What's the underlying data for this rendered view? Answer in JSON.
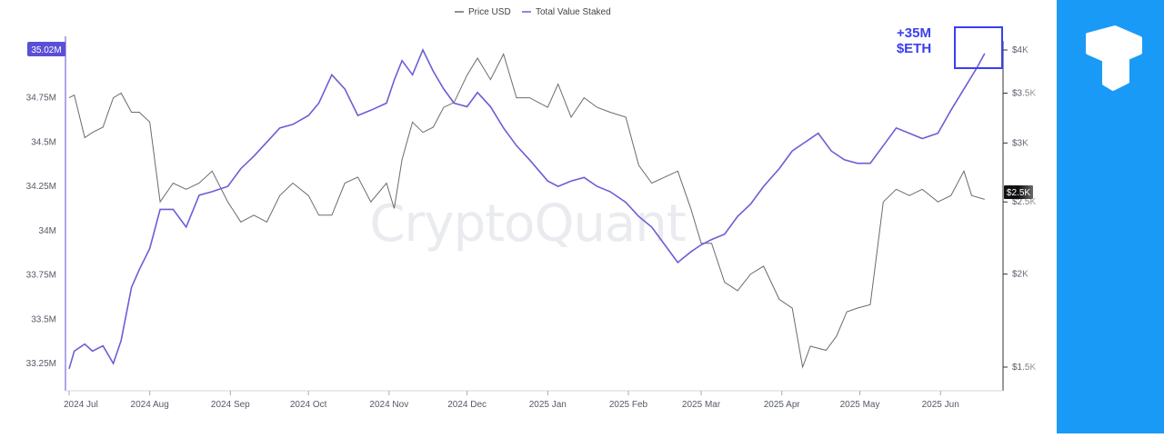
{
  "chart_data": {
    "type": "line",
    "watermark": "CryptoQuant",
    "legend": [
      {
        "name": "Price USD",
        "color": "#6b6b6b"
      },
      {
        "name": "Total Value Staked",
        "color": "#6a5ed6"
      }
    ],
    "x_ticks": [
      "2024 Jul",
      "2024 Aug",
      "2024 Sep",
      "2024 Oct",
      "2024 Nov",
      "2024 Dec",
      "2025 Jan",
      "2025 Feb",
      "2025 Mar",
      "2025 Apr",
      "2025 May",
      "2025 Jun"
    ],
    "left_axis": {
      "ticks": [
        "35.02M",
        "34.75M",
        "34.5M",
        "34.25M",
        "34M",
        "33.75M",
        "33.5M",
        "33.25M"
      ],
      "highlight_label": "35.02M",
      "highlight_color": "#5b4fd6",
      "min": 33.2,
      "max": 35.02
    },
    "right_axis": {
      "ticks": [
        "$4K",
        "$3.5K",
        "$3K",
        "$2.5K",
        "$2K",
        "$1.5K"
      ],
      "highlight_label": "$2.5K",
      "log": true,
      "min": 1500,
      "max": 4000
    },
    "annotation": {
      "line1": "+35M",
      "line2": "$ETH",
      "color": "#3a3ff0"
    },
    "series": [
      {
        "name": "Total Value Staked",
        "unit": "M ETH",
        "color": "#6a5ed6",
        "points": [
          [
            "2024-07-01",
            33.22
          ],
          [
            "2024-07-03",
            33.32
          ],
          [
            "2024-07-07",
            33.36
          ],
          [
            "2024-07-10",
            33.32
          ],
          [
            "2024-07-14",
            33.35
          ],
          [
            "2024-07-18",
            33.25
          ],
          [
            "2024-07-21",
            33.38
          ],
          [
            "2024-07-25",
            33.68
          ],
          [
            "2024-07-28",
            33.78
          ],
          [
            "2024-08-01",
            33.9
          ],
          [
            "2024-08-05",
            34.12
          ],
          [
            "2024-08-10",
            34.12
          ],
          [
            "2024-08-15",
            34.02
          ],
          [
            "2024-08-20",
            34.2
          ],
          [
            "2024-08-25",
            34.22
          ],
          [
            "2024-08-31",
            34.25
          ],
          [
            "2024-09-05",
            34.35
          ],
          [
            "2024-09-10",
            34.42
          ],
          [
            "2024-09-15",
            34.5
          ],
          [
            "2024-09-20",
            34.58
          ],
          [
            "2024-09-25",
            34.6
          ],
          [
            "2024-10-01",
            34.65
          ],
          [
            "2024-10-05",
            34.72
          ],
          [
            "2024-10-10",
            34.88
          ],
          [
            "2024-10-15",
            34.8
          ],
          [
            "2024-10-20",
            34.65
          ],
          [
            "2024-10-25",
            34.68
          ],
          [
            "2024-10-31",
            34.72
          ],
          [
            "2024-11-03",
            34.85
          ],
          [
            "2024-11-06",
            34.96
          ],
          [
            "2024-11-10",
            34.88
          ],
          [
            "2024-11-14",
            35.02
          ],
          [
            "2024-11-18",
            34.9
          ],
          [
            "2024-11-22",
            34.8
          ],
          [
            "2024-11-26",
            34.72
          ],
          [
            "2024-12-01",
            34.7
          ],
          [
            "2024-12-05",
            34.78
          ],
          [
            "2024-12-10",
            34.7
          ],
          [
            "2024-12-15",
            34.58
          ],
          [
            "2024-12-20",
            34.48
          ],
          [
            "2024-12-25",
            34.4
          ],
          [
            "2025-01-01",
            34.28
          ],
          [
            "2025-01-05",
            34.25
          ],
          [
            "2025-01-10",
            34.28
          ],
          [
            "2025-01-15",
            34.3
          ],
          [
            "2025-01-20",
            34.25
          ],
          [
            "2025-01-25",
            34.22
          ],
          [
            "2025-01-31",
            34.16
          ],
          [
            "2025-02-05",
            34.08
          ],
          [
            "2025-02-10",
            34.02
          ],
          [
            "2025-02-15",
            33.92
          ],
          [
            "2025-02-20",
            33.82
          ],
          [
            "2025-02-25",
            33.88
          ],
          [
            "2025-03-01",
            33.92
          ],
          [
            "2025-03-05",
            33.95
          ],
          [
            "2025-03-10",
            33.98
          ],
          [
            "2025-03-15",
            34.08
          ],
          [
            "2025-03-20",
            34.15
          ],
          [
            "2025-03-25",
            34.25
          ],
          [
            "2025-03-31",
            34.35
          ],
          [
            "2025-04-05",
            34.45
          ],
          [
            "2025-04-10",
            34.5
          ],
          [
            "2025-04-15",
            34.55
          ],
          [
            "2025-04-20",
            34.45
          ],
          [
            "2025-04-25",
            34.4
          ],
          [
            "2025-04-30",
            34.38
          ],
          [
            "2025-05-05",
            34.38
          ],
          [
            "2025-05-10",
            34.48
          ],
          [
            "2025-05-15",
            34.58
          ],
          [
            "2025-05-20",
            34.55
          ],
          [
            "2025-05-25",
            34.52
          ],
          [
            "2025-05-31",
            34.55
          ],
          [
            "2025-06-05",
            34.68
          ],
          [
            "2025-06-10",
            34.8
          ],
          [
            "2025-06-15",
            34.92
          ],
          [
            "2025-06-18",
            35.0
          ]
        ]
      },
      {
        "name": "Price USD",
        "unit": "USD",
        "color": "#6b6b6b",
        "points": [
          [
            "2024-07-01",
            3450
          ],
          [
            "2024-07-03",
            3480
          ],
          [
            "2024-07-07",
            3050
          ],
          [
            "2024-07-10",
            3100
          ],
          [
            "2024-07-14",
            3150
          ],
          [
            "2024-07-18",
            3450
          ],
          [
            "2024-07-21",
            3500
          ],
          [
            "2024-07-25",
            3300
          ],
          [
            "2024-07-28",
            3300
          ],
          [
            "2024-08-01",
            3200
          ],
          [
            "2024-08-05",
            2500
          ],
          [
            "2024-08-10",
            2650
          ],
          [
            "2024-08-15",
            2600
          ],
          [
            "2024-08-20",
            2650
          ],
          [
            "2024-08-25",
            2750
          ],
          [
            "2024-08-31",
            2500
          ],
          [
            "2024-09-05",
            2350
          ],
          [
            "2024-09-10",
            2400
          ],
          [
            "2024-09-15",
            2350
          ],
          [
            "2024-09-20",
            2550
          ],
          [
            "2024-09-25",
            2650
          ],
          [
            "2024-10-01",
            2550
          ],
          [
            "2024-10-05",
            2400
          ],
          [
            "2024-10-10",
            2400
          ],
          [
            "2024-10-15",
            2650
          ],
          [
            "2024-10-20",
            2700
          ],
          [
            "2024-10-25",
            2500
          ],
          [
            "2024-10-31",
            2650
          ],
          [
            "2024-11-03",
            2450
          ],
          [
            "2024-11-06",
            2850
          ],
          [
            "2024-11-10",
            3200
          ],
          [
            "2024-11-14",
            3100
          ],
          [
            "2024-11-18",
            3150
          ],
          [
            "2024-11-22",
            3350
          ],
          [
            "2024-11-26",
            3400
          ],
          [
            "2024-12-01",
            3700
          ],
          [
            "2024-12-05",
            3900
          ],
          [
            "2024-12-10",
            3650
          ],
          [
            "2024-12-15",
            3950
          ],
          [
            "2024-12-20",
            3450
          ],
          [
            "2024-12-25",
            3450
          ],
          [
            "2025-01-01",
            3350
          ],
          [
            "2025-01-05",
            3600
          ],
          [
            "2025-01-10",
            3250
          ],
          [
            "2025-01-15",
            3450
          ],
          [
            "2025-01-20",
            3350
          ],
          [
            "2025-01-25",
            3300
          ],
          [
            "2025-01-31",
            3250
          ],
          [
            "2025-02-05",
            2800
          ],
          [
            "2025-02-10",
            2650
          ],
          [
            "2025-02-15",
            2700
          ],
          [
            "2025-02-20",
            2750
          ],
          [
            "2025-02-25",
            2450
          ],
          [
            "2025-03-01",
            2200
          ],
          [
            "2025-03-05",
            2200
          ],
          [
            "2025-03-10",
            1950
          ],
          [
            "2025-03-15",
            1900
          ],
          [
            "2025-03-20",
            2000
          ],
          [
            "2025-03-25",
            2050
          ],
          [
            "2025-03-31",
            1850
          ],
          [
            "2025-04-05",
            1800
          ],
          [
            "2025-04-09",
            1500
          ],
          [
            "2025-04-12",
            1600
          ],
          [
            "2025-04-18",
            1580
          ],
          [
            "2025-04-22",
            1650
          ],
          [
            "2025-04-26",
            1780
          ],
          [
            "2025-04-30",
            1800
          ],
          [
            "2025-05-05",
            1820
          ],
          [
            "2025-05-08",
            2200
          ],
          [
            "2025-05-10",
            2500
          ],
          [
            "2025-05-15",
            2600
          ],
          [
            "2025-05-20",
            2550
          ],
          [
            "2025-05-25",
            2600
          ],
          [
            "2025-05-31",
            2500
          ],
          [
            "2025-06-05",
            2550
          ],
          [
            "2025-06-10",
            2750
          ],
          [
            "2025-06-13",
            2550
          ],
          [
            "2025-06-18",
            2520
          ]
        ]
      }
    ]
  }
}
